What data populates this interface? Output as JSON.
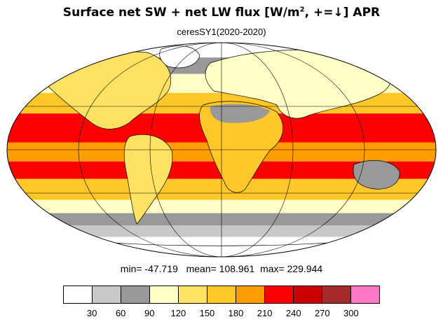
{
  "title": {
    "prefix": "Surface net SW + net LW flux [W/m",
    "superscript": "2",
    "suffix": ", +=↓]  APR"
  },
  "subtitle": "ceresSY1(2020-2020)",
  "stats": {
    "min_label": "min=",
    "min_value": "-47.719",
    "mean_label": "mean=",
    "mean_value": "108.961",
    "max_label": "max=",
    "max_value": "229.944"
  },
  "colorbar": {
    "colors": [
      "#ffffff",
      "#c8c8c8",
      "#999999",
      "#ffffc6",
      "#ffe262",
      "#ffc828",
      "#ff9e00",
      "#ff0000",
      "#cc0000",
      "#a52a2a",
      "#ff78c8"
    ],
    "ticks": [
      "30",
      "60",
      "90",
      "120",
      "150",
      "180",
      "210",
      "240",
      "270",
      "300"
    ]
  },
  "chart_data": {
    "type": "heatmap",
    "projection": "mollweide",
    "title": "Surface net SW + net LW flux [W/m2, +=↓]  APR",
    "subtitle": "ceresSY1(2020-2020)",
    "units": "W/m2",
    "levels": [
      30,
      60,
      90,
      120,
      150,
      180,
      210,
      240,
      270,
      300
    ],
    "colors": [
      "#ffffff",
      "#c8c8c8",
      "#999999",
      "#ffffc6",
      "#ffe262",
      "#ffc828",
      "#ff9e00",
      "#ff0000",
      "#cc0000",
      "#a52a2a",
      "#ff78c8"
    ],
    "min": -47.719,
    "mean": 108.961,
    "max": 229.944,
    "latitude_bands": [
      {
        "lat_range": [
          70,
          90
        ],
        "value": 15
      },
      {
        "lat_range": [
          55,
          70
        ],
        "value": 75
      },
      {
        "lat_range": [
          40,
          55
        ],
        "value": 110
      },
      {
        "lat_range": [
          25,
          40
        ],
        "value": 170
      },
      {
        "lat_range": [
          5,
          25
        ],
        "value": 220
      },
      {
        "lat_range": [
          -8,
          5
        ],
        "value": 195
      },
      {
        "lat_range": [
          -20,
          -8
        ],
        "value": 215
      },
      {
        "lat_range": [
          -35,
          -20
        ],
        "value": 170
      },
      {
        "lat_range": [
          -45,
          -35
        ],
        "value": 110
      },
      {
        "lat_range": [
          -55,
          -45
        ],
        "value": 75
      },
      {
        "lat_range": [
          -65,
          -55
        ],
        "value": 45
      },
      {
        "lat_range": [
          -90,
          -65
        ],
        "value": 10
      }
    ],
    "grid": true
  }
}
